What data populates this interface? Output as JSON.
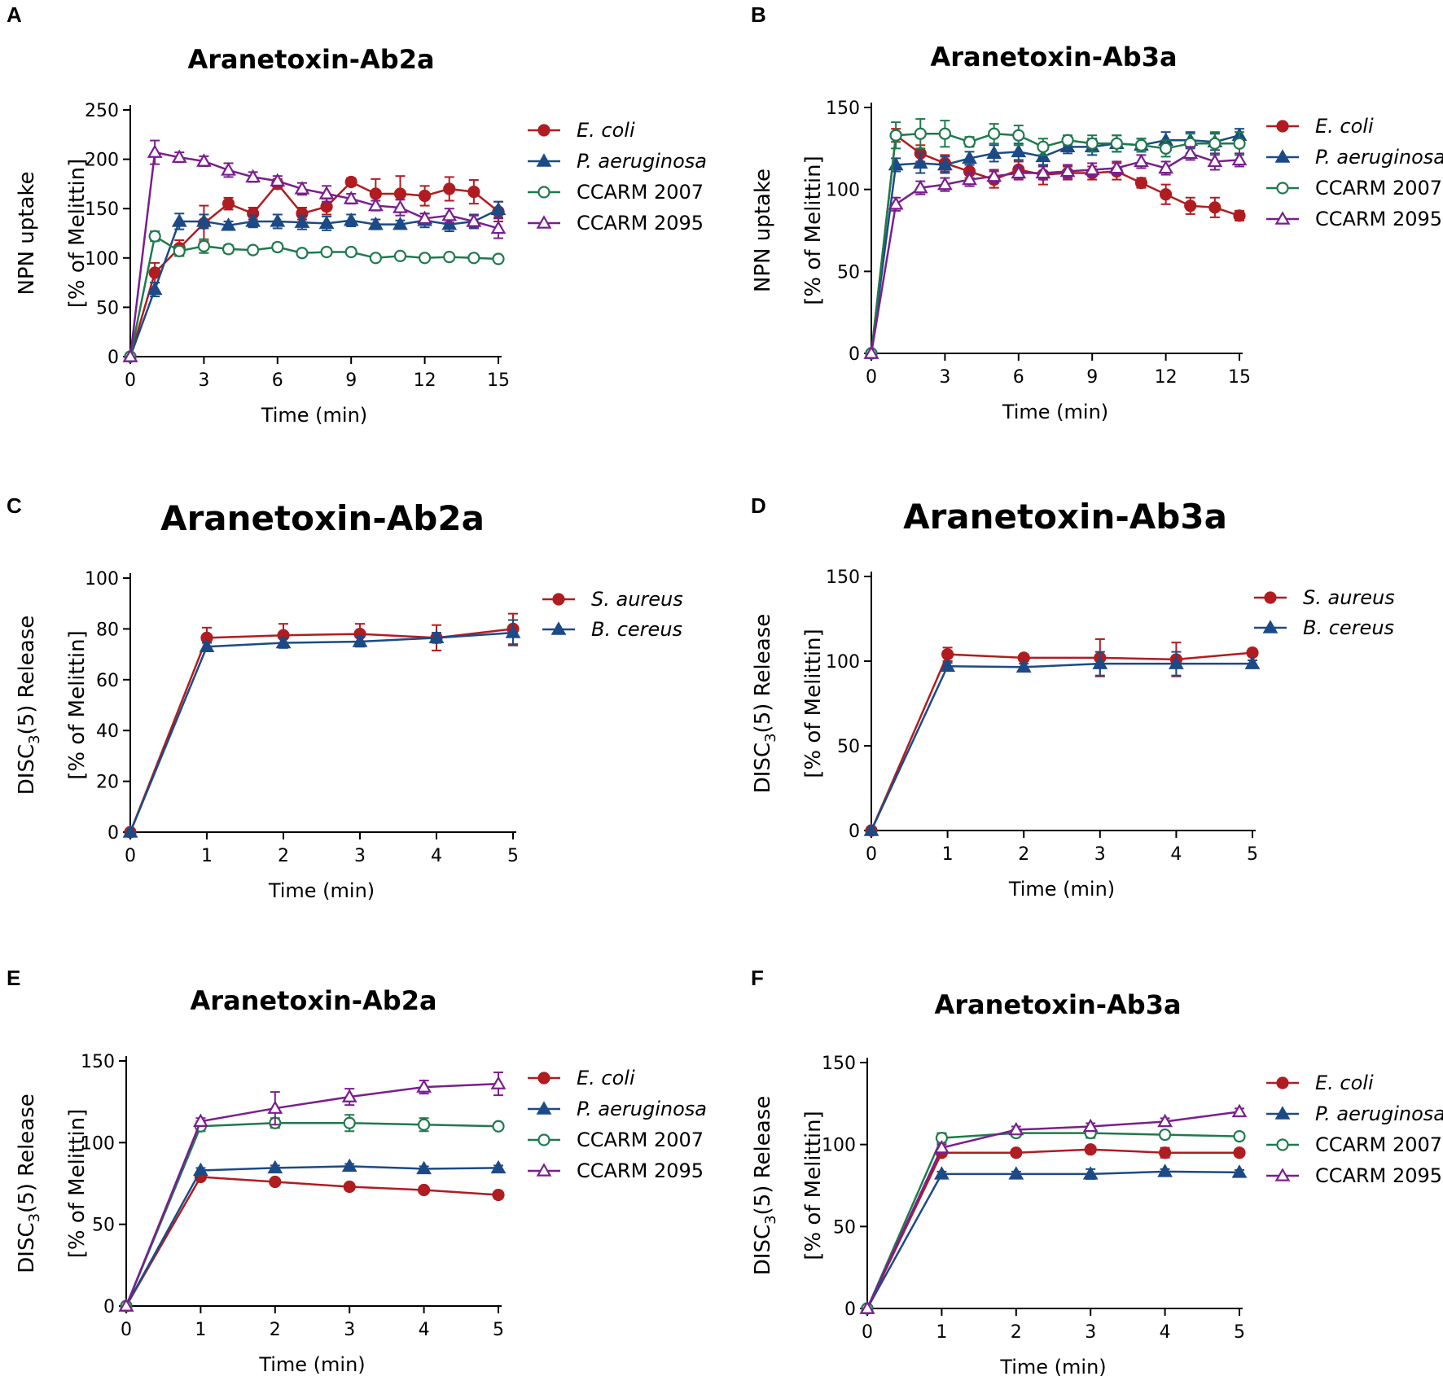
{
  "chart_data": [
    {
      "panel": "A",
      "type": "line",
      "title": "Aranetoxin-Ab2a",
      "xlabel": "Time (min)",
      "ylabel": [
        "NPN uptake",
        "[% of Melittin]"
      ],
      "xlim": [
        0,
        15
      ],
      "ylim": [
        0,
        250
      ],
      "xticks": [
        0,
        3,
        6,
        9,
        12,
        15
      ],
      "yticks": [
        0,
        50,
        100,
        150,
        200,
        250
      ],
      "x": [
        0,
        1,
        2,
        3,
        4,
        5,
        6,
        7,
        8,
        9,
        10,
        11,
        12,
        13,
        14,
        15
      ],
      "series": [
        {
          "name": "E. coli",
          "italic": true,
          "color": "#b01c20",
          "marker": "circle-filled",
          "values": [
            0,
            85,
            110,
            135,
            155,
            145,
            175,
            145,
            152,
            177,
            165,
            165,
            163,
            170,
            167,
            147
          ],
          "errors": [
            0,
            10,
            8,
            18,
            6,
            6,
            5,
            6,
            8,
            4,
            15,
            18,
            10,
            12,
            12,
            10
          ]
        },
        {
          "name": "P. aeruginosa",
          "italic": true,
          "color": "#1c4a86",
          "marker": "triangle-filled",
          "values": [
            0,
            68,
            137,
            137,
            133,
            137,
            137,
            136,
            135,
            138,
            134,
            134,
            138,
            134,
            137,
            149
          ],
          "errors": [
            0,
            7,
            8,
            7,
            4,
            6,
            7,
            7,
            7,
            6,
            5,
            4,
            7,
            7,
            7,
            8
          ]
        },
        {
          "name": "CCARM 2007",
          "italic": false,
          "color": "#1e7a4c",
          "marker": "circle-open",
          "values": [
            0,
            122,
            107,
            112,
            109,
            108,
            111,
            105,
            106,
            106,
            100,
            102,
            100,
            101,
            100,
            99
          ],
          "errors": [
            0,
            5,
            5,
            7,
            4,
            3,
            4,
            3,
            3,
            3,
            3,
            3,
            3,
            3,
            3,
            3
          ]
        },
        {
          "name": "CCARM 2095",
          "italic": false,
          "color": "#7a1e8e",
          "marker": "triangle-open",
          "values": [
            0,
            207,
            202,
            198,
            189,
            182,
            178,
            170,
            165,
            160,
            153,
            151,
            140,
            143,
            137,
            130
          ],
          "errors": [
            0,
            12,
            5,
            5,
            7,
            5,
            5,
            6,
            8,
            5,
            5,
            8,
            5,
            7,
            6,
            10
          ]
        }
      ]
    },
    {
      "panel": "B",
      "type": "line",
      "title": "Aranetoxin-Ab3a",
      "xlabel": "Time (min)",
      "ylabel": [
        "NPN uptake",
        "[% of Melittin]"
      ],
      "xlim": [
        0,
        15
      ],
      "ylim": [
        0,
        150
      ],
      "xticks": [
        0,
        3,
        6,
        9,
        12,
        15
      ],
      "yticks": [
        0,
        50,
        100,
        150
      ],
      "x": [
        0,
        1,
        2,
        3,
        4,
        5,
        6,
        7,
        8,
        9,
        10,
        11,
        12,
        13,
        14,
        15
      ],
      "series": [
        {
          "name": "E. coli",
          "italic": true,
          "color": "#b01c20",
          "marker": "circle-filled",
          "values": [
            0,
            133,
            122,
            116,
            111,
            106,
            112,
            109,
            110,
            110,
            111,
            104,
            97,
            90,
            89,
            84
          ],
          "errors": [
            0,
            4,
            5,
            5,
            4,
            5,
            5,
            6,
            4,
            4,
            5,
            3,
            6,
            5,
            6,
            3
          ]
        },
        {
          "name": "P. aeruginosa",
          "italic": true,
          "color": "#1c4a86",
          "marker": "triangle-filled",
          "values": [
            0,
            115,
            116,
            115,
            119,
            122,
            123,
            120,
            126,
            126,
            128,
            127,
            130,
            130,
            129,
            133
          ],
          "errors": [
            0,
            4,
            6,
            5,
            4,
            5,
            5,
            5,
            4,
            5,
            5,
            4,
            5,
            5,
            5,
            4
          ]
        },
        {
          "name": "CCARM 2007",
          "italic": false,
          "color": "#1e7a4c",
          "marker": "circle-open",
          "values": [
            0,
            133,
            134,
            134,
            129,
            134,
            133,
            126,
            130,
            128,
            128,
            127,
            125,
            128,
            128,
            128
          ],
          "errors": [
            0,
            8,
            9,
            8,
            3,
            6,
            6,
            5,
            3,
            5,
            5,
            4,
            5,
            6,
            7,
            7
          ]
        },
        {
          "name": "CCARM 2095",
          "italic": false,
          "color": "#7a1e8e",
          "marker": "triangle-open",
          "values": [
            0,
            91,
            101,
            103,
            106,
            108,
            110,
            110,
            111,
            112,
            113,
            117,
            113,
            122,
            117,
            118
          ],
          "errors": [
            0,
            4,
            4,
            4,
            4,
            4,
            4,
            4,
            4,
            4,
            4,
            4,
            4,
            4,
            5,
            4
          ]
        }
      ]
    },
    {
      "panel": "C",
      "type": "line",
      "title": "Aranetoxin-Ab2a",
      "xlabel": "Time (min)",
      "ylabel": [
        "DISC",
        "3",
        "(5) Release",
        "[% of Melittin]"
      ],
      "xlim": [
        0,
        5
      ],
      "ylim": [
        0,
        100
      ],
      "xticks": [
        0,
        1,
        2,
        3,
        4,
        5
      ],
      "yticks": [
        0,
        20,
        40,
        60,
        80,
        100
      ],
      "x": [
        0,
        1,
        2,
        3,
        4,
        5
      ],
      "series": [
        {
          "name": "S. aureus",
          "italic": true,
          "color": "#b01c20",
          "marker": "circle-filled",
          "values": [
            0,
            76.5,
            77.5,
            78,
            76.5,
            80
          ],
          "errors": [
            0,
            4,
            4.5,
            4,
            5,
            6
          ]
        },
        {
          "name": "B. cereus",
          "italic": true,
          "color": "#1c4a86",
          "marker": "triangle-filled",
          "values": [
            0,
            73,
            74.5,
            75,
            76.5,
            78.5
          ],
          "errors": [
            0,
            1.5,
            2,
            2,
            2,
            5
          ]
        }
      ]
    },
    {
      "panel": "D",
      "type": "line",
      "title": "Aranetoxin-Ab3a",
      "xlabel": "Time (min)",
      "ylabel": [
        "DISC",
        "3",
        "(5) Release",
        "[% of Melittin]"
      ],
      "xlim": [
        0,
        5
      ],
      "ylim": [
        0,
        150
      ],
      "xticks": [
        0,
        1,
        2,
        3,
        4,
        5
      ],
      "yticks": [
        0,
        50,
        100,
        150
      ],
      "x": [
        0,
        1,
        2,
        3,
        4,
        5
      ],
      "series": [
        {
          "name": "S. aureus",
          "italic": true,
          "color": "#b01c20",
          "marker": "circle-filled",
          "values": [
            0,
            104,
            102,
            102,
            101,
            105
          ],
          "errors": [
            0,
            4,
            2,
            11,
            10,
            2
          ]
        },
        {
          "name": "B. cereus",
          "italic": true,
          "color": "#1c4a86",
          "marker": "triangle-filled",
          "values": [
            0,
            97,
            96.5,
            98.5,
            98.5,
            98.5
          ],
          "errors": [
            0,
            2,
            2,
            7,
            7,
            2
          ]
        }
      ]
    },
    {
      "panel": "E",
      "type": "line",
      "title": "Aranetoxin-Ab2a",
      "xlabel": "Time (min)",
      "ylabel": [
        "DISC",
        "3",
        "(5) Release",
        "[% of Melittin]"
      ],
      "xlim": [
        0,
        5
      ],
      "ylim": [
        0,
        150
      ],
      "xticks": [
        0,
        1,
        2,
        3,
        4,
        5
      ],
      "yticks": [
        0,
        50,
        100,
        150
      ],
      "x": [
        0,
        1,
        2,
        3,
        4,
        5
      ],
      "series": [
        {
          "name": "E. coli",
          "italic": true,
          "color": "#b01c20",
          "marker": "circle-filled",
          "values": [
            0,
            79,
            76,
            73,
            71,
            68
          ],
          "errors": [
            0,
            1.5,
            1.5,
            1.5,
            1.5,
            1.5
          ]
        },
        {
          "name": "P. aeruginosa",
          "italic": true,
          "color": "#1c4a86",
          "marker": "triangle-filled",
          "values": [
            0,
            83,
            84.5,
            85.5,
            84,
            84.5
          ],
          "errors": [
            0,
            1.5,
            1.5,
            1.5,
            1.5,
            1.5
          ]
        },
        {
          "name": "CCARM 2007",
          "italic": false,
          "color": "#1e7a4c",
          "marker": "circle-open",
          "values": [
            0,
            110,
            112,
            112,
            111,
            110
          ],
          "errors": [
            0,
            3,
            3,
            5,
            4,
            2
          ]
        },
        {
          "name": "CCARM 2095",
          "italic": false,
          "color": "#7a1e8e",
          "marker": "triangle-open",
          "values": [
            0,
            113,
            121,
            128,
            134,
            136
          ],
          "errors": [
            0,
            2,
            10,
            5,
            4,
            7
          ]
        }
      ]
    },
    {
      "panel": "F",
      "type": "line",
      "title": "Aranetoxin-Ab3a",
      "xlabel": "Time (min)",
      "ylabel": [
        "DISC",
        "3",
        "(5) Release",
        "[% of Melittin]"
      ],
      "xlim": [
        0,
        5
      ],
      "ylim": [
        0,
        150
      ],
      "xticks": [
        0,
        1,
        2,
        3,
        4,
        5
      ],
      "yticks": [
        0,
        50,
        100,
        150
      ],
      "x": [
        0,
        1,
        2,
        3,
        4,
        5
      ],
      "series": [
        {
          "name": "E. coli",
          "italic": true,
          "color": "#b01c20",
          "marker": "circle-filled",
          "values": [
            0,
            95,
            95,
            97,
            95,
            95
          ],
          "errors": [
            0,
            2,
            2,
            2,
            3,
            2
          ]
        },
        {
          "name": "P. aeruginosa",
          "italic": true,
          "color": "#1c4a86",
          "marker": "triangle-filled",
          "values": [
            0,
            82,
            82,
            82,
            83.5,
            83
          ],
          "errors": [
            0,
            1.5,
            1.5,
            3,
            1.5,
            1.5
          ]
        },
        {
          "name": "CCARM 2007",
          "italic": false,
          "color": "#1e7a4c",
          "marker": "circle-open",
          "values": [
            0,
            104,
            107,
            107,
            106,
            105
          ],
          "errors": [
            0,
            3,
            2,
            3,
            2,
            2
          ]
        },
        {
          "name": "CCARM 2095",
          "italic": false,
          "color": "#7a1e8e",
          "marker": "triangle-open",
          "values": [
            0,
            98,
            109,
            111,
            114,
            120
          ],
          "errors": [
            0,
            2,
            2,
            2,
            2,
            2
          ]
        }
      ]
    }
  ]
}
